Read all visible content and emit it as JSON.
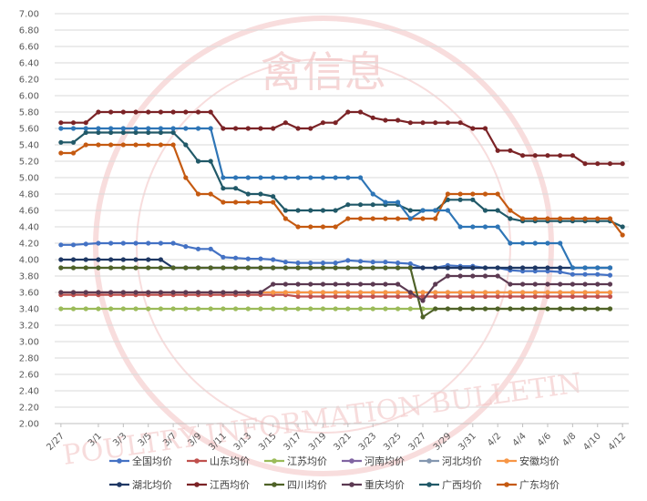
{
  "chart_data": {
    "type": "line",
    "title": "",
    "xlabel": "",
    "ylabel": "",
    "ylim": [
      2.0,
      7.0
    ],
    "y_step": 0.2,
    "grid": true,
    "legend_position": "bottom",
    "watermark_texts": [
      "禽信息",
      "POULTRY INFORMATION BULLETIN"
    ],
    "x": [
      "2/27",
      "2/28",
      "2/29",
      "3/1",
      "3/2",
      "3/3",
      "3/4",
      "3/5",
      "3/6",
      "3/7",
      "3/8",
      "3/9",
      "3/10",
      "3/11",
      "3/12",
      "3/13",
      "3/14",
      "3/15",
      "3/16",
      "3/17",
      "3/18",
      "3/19",
      "3/20",
      "3/21",
      "3/22",
      "3/23",
      "3/24",
      "3/25",
      "3/26",
      "3/27",
      "3/28",
      "3/29",
      "3/30",
      "3/31",
      "4/1",
      "4/2",
      "4/3",
      "4/4",
      "4/5",
      "4/6",
      "4/7",
      "4/8",
      "4/9",
      "4/10",
      "4/11",
      "4/12"
    ],
    "x_tick_labels": [
      "2/27",
      "3/1",
      "3/3",
      "3/5",
      "3/7",
      "3/9",
      "3/11",
      "3/13",
      "3/15",
      "3/17",
      "3/19",
      "3/21",
      "3/23",
      "3/25",
      "3/27",
      "3/29",
      "3/31",
      "4/2",
      "4/4",
      "4/6",
      "4/8",
      "4/10",
      "4/12"
    ],
    "series": [
      {
        "name": "全国均价",
        "color": "#4472c4",
        "values": [
          4.18,
          4.18,
          4.19,
          4.2,
          4.2,
          4.2,
          4.2,
          4.2,
          4.2,
          4.2,
          4.16,
          4.13,
          4.13,
          4.03,
          4.02,
          4.01,
          4.01,
          4.0,
          3.97,
          3.96,
          3.96,
          3.96,
          3.96,
          3.99,
          3.98,
          3.97,
          3.97,
          3.96,
          3.95,
          3.9,
          3.9,
          3.93,
          3.92,
          3.92,
          3.9,
          3.9,
          3.87,
          3.86,
          3.86,
          3.86,
          3.85,
          3.82,
          3.82,
          3.82,
          3.81,
          null
        ]
      },
      {
        "name": "山东均价",
        "color": "#c0504d",
        "values": [
          3.57,
          3.57,
          3.57,
          3.57,
          3.57,
          3.57,
          3.57,
          3.57,
          3.57,
          3.57,
          3.57,
          3.57,
          3.57,
          3.57,
          3.57,
          3.57,
          3.57,
          3.57,
          3.57,
          3.55,
          3.55,
          3.55,
          3.55,
          3.55,
          3.55,
          3.55,
          3.55,
          3.55,
          3.55,
          3.55,
          3.55,
          3.55,
          3.55,
          3.55,
          3.55,
          3.55,
          3.55,
          3.55,
          3.55,
          3.55,
          3.55,
          3.55,
          3.55,
          3.55,
          3.55,
          null
        ]
      },
      {
        "name": "江苏均价",
        "color": "#9bbb59",
        "values": [
          3.4,
          3.4,
          3.4,
          3.4,
          3.4,
          3.4,
          3.4,
          3.4,
          3.4,
          3.4,
          3.4,
          3.4,
          3.4,
          3.4,
          3.4,
          3.4,
          3.4,
          3.4,
          3.4,
          3.4,
          3.4,
          3.4,
          3.4,
          3.4,
          3.4,
          3.4,
          3.4,
          3.4,
          3.4,
          3.4,
          3.4,
          3.4,
          3.4,
          3.4,
          3.4,
          3.4,
          3.4,
          3.4,
          3.4,
          3.4,
          3.4,
          3.4,
          3.4,
          3.4,
          3.4,
          null
        ]
      },
      {
        "name": "河南均价",
        "color": "#8064a2",
        "values": [
          3.6,
          3.6,
          3.6,
          3.6,
          3.6,
          3.6,
          3.6,
          3.6,
          3.6,
          3.6,
          3.6,
          3.6,
          3.6,
          3.6,
          3.6,
          3.6,
          3.6,
          3.6,
          3.6,
          3.6,
          3.6,
          3.6,
          3.6,
          3.6,
          3.6,
          3.6,
          3.6,
          3.6,
          3.6,
          3.6,
          3.6,
          3.6,
          3.6,
          3.6,
          3.6,
          3.6,
          3.6,
          3.6,
          3.6,
          3.6,
          3.6,
          3.6,
          3.6,
          3.6,
          3.6,
          null
        ]
      },
      {
        "name": "河北均价",
        "color": "#8497b0",
        "values": [
          3.9,
          3.9,
          3.9,
          3.9,
          3.9,
          3.9,
          3.9,
          3.9,
          3.9,
          3.9,
          3.9,
          3.9,
          3.9,
          3.9,
          3.9,
          3.9,
          3.9,
          3.9,
          3.9,
          3.9,
          3.9,
          3.9,
          3.9,
          3.9,
          3.9,
          3.9,
          3.9,
          3.9,
          3.9,
          3.9,
          3.9,
          3.9,
          3.9,
          3.9,
          3.9,
          3.9,
          3.9,
          3.9,
          3.9,
          3.9,
          3.9,
          3.9,
          3.9,
          3.9,
          3.9,
          null
        ]
      },
      {
        "name": "安徽均价",
        "color": "#f79646",
        "values": [
          3.6,
          3.6,
          3.6,
          3.6,
          3.6,
          3.6,
          3.6,
          3.6,
          3.6,
          3.6,
          3.6,
          3.6,
          3.6,
          3.6,
          3.6,
          3.6,
          3.6,
          3.6,
          3.6,
          3.6,
          3.6,
          3.6,
          3.6,
          3.6,
          3.6,
          3.6,
          3.6,
          3.6,
          3.6,
          3.6,
          3.6,
          3.6,
          3.6,
          3.6,
          3.6,
          3.6,
          3.6,
          3.6,
          3.6,
          3.6,
          3.6,
          3.6,
          3.6,
          3.6,
          3.6,
          null
        ]
      },
      {
        "name": "湖北均价",
        "color": "#1f3864",
        "values": [
          4.0,
          4.0,
          4.0,
          4.0,
          4.0,
          4.0,
          4.0,
          4.0,
          4.0,
          3.9,
          3.9,
          3.9,
          3.9,
          3.9,
          3.9,
          3.9,
          3.9,
          3.9,
          3.9,
          3.9,
          3.9,
          3.9,
          3.9,
          3.9,
          3.9,
          3.9,
          3.9,
          3.9,
          3.9,
          3.9,
          3.9,
          3.9,
          3.9,
          3.9,
          3.9,
          3.9,
          3.9,
          3.9,
          3.9,
          3.9,
          3.9,
          3.9,
          3.9,
          3.9,
          3.9,
          null
        ]
      },
      {
        "name": "江西均价",
        "color": "#7b2326",
        "values": [
          5.67,
          5.67,
          5.67,
          5.8,
          5.8,
          5.8,
          5.8,
          5.8,
          5.8,
          5.8,
          5.8,
          5.8,
          5.8,
          5.6,
          5.6,
          5.6,
          5.6,
          5.6,
          5.67,
          5.6,
          5.6,
          5.67,
          5.67,
          5.8,
          5.8,
          5.73,
          5.7,
          5.7,
          5.67,
          5.67,
          5.67,
          5.67,
          5.67,
          5.6,
          5.6,
          5.33,
          5.33,
          5.27,
          5.27,
          5.27,
          5.27,
          5.27,
          5.17,
          5.17,
          5.17,
          5.17
        ]
      },
      {
        "name": "四川均价",
        "color": "#4f6228",
        "values": [
          3.9,
          3.9,
          3.9,
          3.9,
          3.9,
          3.9,
          3.9,
          3.9,
          3.9,
          3.9,
          3.9,
          3.9,
          3.9,
          3.9,
          3.9,
          3.9,
          3.9,
          3.9,
          3.9,
          3.9,
          3.9,
          3.9,
          3.9,
          3.9,
          3.9,
          3.9,
          3.9,
          3.9,
          3.9,
          3.3,
          3.4,
          3.4,
          3.4,
          3.4,
          3.4,
          3.4,
          3.4,
          3.4,
          3.4,
          3.4,
          3.4,
          3.4,
          3.4,
          3.4,
          3.4,
          null
        ]
      },
      {
        "name": "重庆均价",
        "color": "#5c3a52",
        "values": [
          3.6,
          3.6,
          3.6,
          3.6,
          3.6,
          3.6,
          3.6,
          3.6,
          3.6,
          3.6,
          3.6,
          3.6,
          3.6,
          3.6,
          3.6,
          3.6,
          3.6,
          3.7,
          3.7,
          3.7,
          3.7,
          3.7,
          3.7,
          3.7,
          3.7,
          3.7,
          3.7,
          3.7,
          3.6,
          3.5,
          3.7,
          3.8,
          3.8,
          3.8,
          3.8,
          3.8,
          3.7,
          3.7,
          3.7,
          3.7,
          3.7,
          3.7,
          3.7,
          3.7,
          3.7,
          null
        ]
      },
      {
        "name": "广西均价",
        "color": "#215968",
        "values": [
          5.43,
          5.43,
          5.55,
          5.55,
          5.55,
          5.55,
          5.55,
          5.55,
          5.55,
          5.55,
          5.4,
          5.2,
          5.2,
          4.87,
          4.87,
          4.8,
          4.8,
          4.77,
          4.6,
          4.6,
          4.6,
          4.6,
          4.6,
          4.67,
          4.67,
          4.67,
          4.67,
          4.67,
          4.6,
          4.6,
          4.6,
          4.73,
          4.73,
          4.73,
          4.6,
          4.6,
          4.5,
          4.47,
          4.47,
          4.47,
          4.47,
          4.47,
          4.47,
          4.47,
          4.47,
          4.4
        ]
      },
      {
        "name": "广东均价",
        "color": "#c55a11",
        "values": [
          5.3,
          5.3,
          5.4,
          5.4,
          5.4,
          5.4,
          5.4,
          5.4,
          5.4,
          5.4,
          5.0,
          4.8,
          4.8,
          4.7,
          4.7,
          4.7,
          4.7,
          4.7,
          4.5,
          4.4,
          4.4,
          4.4,
          4.4,
          4.5,
          4.5,
          4.5,
          4.5,
          4.5,
          4.5,
          4.5,
          4.5,
          4.8,
          4.8,
          4.8,
          4.8,
          4.8,
          4.6,
          4.5,
          4.5,
          4.5,
          4.5,
          4.5,
          4.5,
          4.5,
          4.5,
          4.3
        ]
      },
      {
        "name": "",
        "color": "#2e75b6",
        "values": [
          5.6,
          5.6,
          5.6,
          5.6,
          5.6,
          5.6,
          5.6,
          5.6,
          5.6,
          5.6,
          5.6,
          5.6,
          5.6,
          5.0,
          5.0,
          5.0,
          5.0,
          5.0,
          5.0,
          5.0,
          5.0,
          5.0,
          5.0,
          5.0,
          5.0,
          4.8,
          4.7,
          4.7,
          4.5,
          4.6,
          4.6,
          4.6,
          4.4,
          4.4,
          4.4,
          4.4,
          4.2,
          4.2,
          4.2,
          4.2,
          4.2,
          3.9,
          3.9,
          3.9,
          3.9,
          null
        ]
      }
    ],
    "legend_rows": [
      [
        "全国均价",
        "山东均价",
        "江苏均价",
        "河南均价",
        "河北均价",
        "安徽均价"
      ],
      [
        "湖北均价",
        "江西均价",
        "四川均价",
        "重庆均价",
        "广西均价",
        "广东均价"
      ]
    ]
  }
}
